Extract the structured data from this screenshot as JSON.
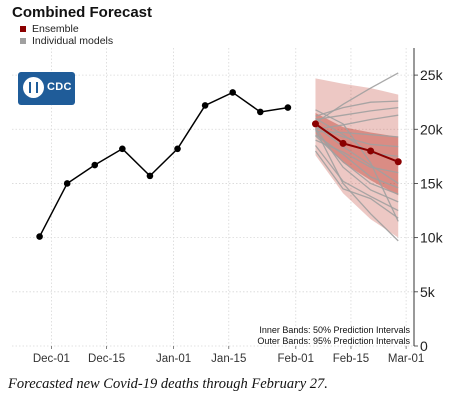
{
  "title": "Combined Forecast",
  "caption": "Forecasted new Covid-19 deaths through February 27.",
  "legend": [
    {
      "label": "Ensemble",
      "color": "#8b0000"
    },
    {
      "label": "Individual models",
      "color": "#a0a0a0"
    }
  ],
  "logo": {
    "text": "CDC",
    "icon": "cdc-logo-icon"
  },
  "notes": {
    "inner": "Inner Bands: 50% Prediction Intervals",
    "outer": "Outer Bands: 95% Prediction Intervals"
  },
  "colors": {
    "ensemble": "#8b0000",
    "models": "#a0a0a0",
    "observed": "#000000",
    "band": "#c0392b"
  },
  "chart_data": {
    "type": "line",
    "title": "Combined Forecast",
    "xlabel": "",
    "ylabel": "",
    "x_ticks": [
      "Dec-01",
      "Dec-15",
      "Jan-01",
      "Jan-15",
      "Feb-01",
      "Feb-15",
      "Mar-01"
    ],
    "y_ticks": [
      "0",
      "5k",
      "10k",
      "15k",
      "20k",
      "25k"
    ],
    "ylim": [
      0,
      27500
    ],
    "y_axis_side": "right",
    "grid": true,
    "legend_position": "top-left",
    "observed": {
      "name": "",
      "x": [
        "2020-11-28",
        "2020-12-05",
        "2020-12-12",
        "2020-12-19",
        "2020-12-26",
        "2021-01-02",
        "2021-01-09",
        "2021-01-16",
        "2021-01-23",
        "2021-01-30"
      ],
      "y": [
        10100,
        15000,
        16700,
        18200,
        15700,
        18200,
        22200,
        23400,
        21600,
        22000
      ]
    },
    "ensemble": {
      "name": "Ensemble",
      "x": [
        "2021-02-06",
        "2021-02-13",
        "2021-02-20",
        "2021-02-27"
      ],
      "y": [
        20500,
        18700,
        18000,
        17000
      ],
      "inner_lower": [
        19600,
        16900,
        15300,
        13900
      ],
      "inner_upper": [
        21500,
        20200,
        19700,
        19300
      ],
      "outer_lower": [
        17600,
        14100,
        11700,
        10000
      ],
      "outer_upper": [
        24700,
        24200,
        23800,
        23200
      ]
    },
    "individual_models": {
      "name": "Individual models",
      "x": [
        "2021-02-06",
        "2021-02-13",
        "2021-02-20",
        "2021-02-27"
      ],
      "series": [
        [
          20600,
          22300,
          23800,
          25200
        ],
        [
          21200,
          22000,
          22500,
          22600
        ],
        [
          20900,
          21300,
          21700,
          22000
        ],
        [
          20000,
          20400,
          20900,
          21300
        ],
        [
          19800,
          19700,
          19500,
          19300
        ],
        [
          20300,
          19300,
          18600,
          18400
        ],
        [
          21000,
          19500,
          17800,
          17500
        ],
        [
          19000,
          17900,
          16500,
          16000
        ],
        [
          20300,
          18400,
          16700,
          15000
        ],
        [
          19500,
          17700,
          15600,
          14600
        ],
        [
          19400,
          17000,
          15000,
          14000
        ],
        [
          20100,
          16500,
          14400,
          13300
        ],
        [
          18500,
          15200,
          13800,
          12500
        ],
        [
          18000,
          14500,
          13600,
          11800
        ],
        [
          20000,
          15000,
          12200,
          9700
        ],
        [
          21800,
          20500,
          16900,
          11500
        ]
      ]
    }
  }
}
